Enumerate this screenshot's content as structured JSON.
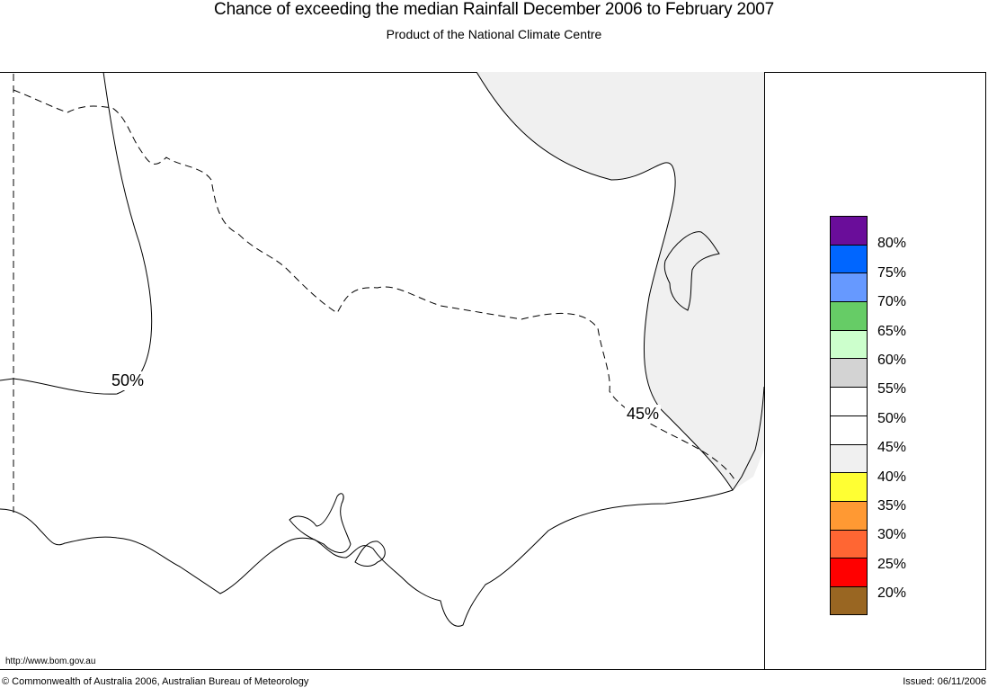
{
  "header": {
    "title": "Chance of exceeding the median Rainfall December 2006 to February 2007",
    "subtitle": "Product of the National Climate Centre"
  },
  "map": {
    "contour_labels": [
      "50%",
      "45%"
    ],
    "shaded_band": "40%-45%",
    "shade_color": "#f0f0f0"
  },
  "legend": {
    "swatches": [
      {
        "color": "#6a0d9a"
      },
      {
        "color": "#0066ff"
      },
      {
        "color": "#6699ff"
      },
      {
        "color": "#66cc66"
      },
      {
        "color": "#ccffcc"
      },
      {
        "color": "#d3d3d3"
      },
      {
        "color": "#ffffff"
      },
      {
        "color": "#ffffff"
      },
      {
        "color": "#f0f0f0"
      },
      {
        "color": "#ffff33"
      },
      {
        "color": "#ff9933"
      },
      {
        "color": "#ff6633"
      },
      {
        "color": "#ff0000"
      },
      {
        "color": "#996622"
      }
    ],
    "labels": [
      "80%",
      "75%",
      "70%",
      "65%",
      "60%",
      "55%",
      "50%",
      "45%",
      "40%",
      "35%",
      "30%",
      "25%",
      "20%"
    ]
  },
  "footer": {
    "url": "http://www.bom.gov.au",
    "copyright": "© Commonwealth of Australia 2006, Australian Bureau of Meteorology",
    "issued": "Issued: 06/11/2006"
  }
}
